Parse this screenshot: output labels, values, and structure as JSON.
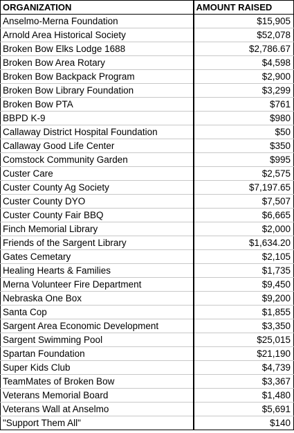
{
  "table": {
    "headers": {
      "organization": "ORGANIZATION",
      "amount": "AMOUNT RAISED"
    },
    "rows": [
      {
        "organization": "Anselmo-Merna Foundation",
        "amount": "$15,905"
      },
      {
        "organization": "Arnold Area Historical Society",
        "amount": "$52,078"
      },
      {
        "organization": "Broken Bow Elks Lodge 1688",
        "amount": "$2,786.67"
      },
      {
        "organization": "Broken Bow Area Rotary",
        "amount": "$4,598"
      },
      {
        "organization": "Broken Bow Backpack Program",
        "amount": "$2,900"
      },
      {
        "organization": "Broken Bow Library Foundation",
        "amount": "$3,299"
      },
      {
        "organization": "Broken Bow PTA",
        "amount": "$761"
      },
      {
        "organization": "BBPD K-9",
        "amount": "$980"
      },
      {
        "organization": "Callaway District Hospital Foundation",
        "amount": "$50"
      },
      {
        "organization": "Callaway Good Life Center",
        "amount": "$350"
      },
      {
        "organization": "Comstock Community Garden",
        "amount": "$995"
      },
      {
        "organization": "Custer Care",
        "amount": "$2,575"
      },
      {
        "organization": "Custer County Ag Society",
        "amount": "$7,197.65"
      },
      {
        "organization": "Custer County DYO",
        "amount": "$7,507"
      },
      {
        "organization": "Custer County Fair BBQ",
        "amount": "$6,665"
      },
      {
        "organization": "Finch Memorial Library",
        "amount": "$2,000"
      },
      {
        "organization": "Friends of the Sargent Library",
        "amount": "$1,634.20"
      },
      {
        "organization": "Gates Cemetary",
        "amount": "$2,105"
      },
      {
        "organization": "Healing Hearts & Families",
        "amount": "$1,735"
      },
      {
        "organization": "Merna Volunteer Fire Department",
        "amount": "$9,450"
      },
      {
        "organization": "Nebraska One Box",
        "amount": "$9,200"
      },
      {
        "organization": "Santa Cop",
        "amount": "$1,855"
      },
      {
        "organization": "Sargent Area Economic Development",
        "amount": "$3,350"
      },
      {
        "organization": "Sargent Swimming Pool",
        "amount": "$25,015"
      },
      {
        "organization": "Spartan Foundation",
        "amount": "$21,190"
      },
      {
        "organization": "Super Kids Club",
        "amount": "$4,739"
      },
      {
        "organization": "TeamMates of Broken Bow",
        "amount": "$3,367"
      },
      {
        "organization": "Veterans Memorial Board",
        "amount": "$1,480"
      },
      {
        "organization": "Veterans Wall at Anselmo",
        "amount": "$5,691"
      },
      {
        "organization": "\"Support Them All\"",
        "amount": "$140"
      }
    ]
  }
}
